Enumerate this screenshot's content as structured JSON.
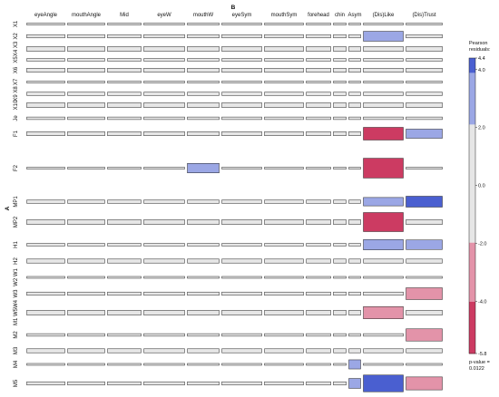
{
  "chart_data": {
    "type": "mosaic",
    "title": "",
    "x_variable": "B",
    "y_variable": "A",
    "x_categories": [
      "eyeAngle",
      "mouthAngle",
      "Mid",
      "eyeW",
      "mouthW",
      "eyeSym",
      "mouthSym",
      "forehead",
      "chin",
      "Asym",
      "(Dis)Like",
      "(Dis)Trust"
    ],
    "y_categories": [
      "X1",
      "X2",
      "X4 X3",
      "X5",
      "X6",
      "X7",
      "X9 X8",
      "X10",
      "Je",
      "F1",
      "F2",
      "MP1",
      "MP2",
      "H1",
      "H2",
      "W2 W1",
      "W3",
      "M1 W5W4",
      "M2",
      "M3",
      "M4",
      "M5"
    ],
    "residuals": {
      "X2": {
        "(Dis)Like": 2.6
      },
      "F1": {
        "(Dis)Like": -4.6,
        "(Dis)Trust": 2.4
      },
      "F2": {
        "mouthW": 2.5,
        "(Dis)Like": -5.2
      },
      "MP1": {
        "(Dis)Like": 2.2,
        "(Dis)Trust": 4.3
      },
      "MP2": {
        "(Dis)Like": -5.0
      },
      "H1": {
        "(Dis)Like": 2.7,
        "(Dis)Trust": 2.5
      },
      "W3": {
        "(Dis)Trust": -3.5
      },
      "M1 W5W4": {
        "(Dis)Like": -3.2
      },
      "M2": {
        "(Dis)Trust": -3.2
      },
      "M4": {
        "Asym": 2.4
      },
      "M5": {
        "Asym": 2.6,
        "(Dis)Like": 4.4,
        "(Dis)Trust": -3.4
      }
    },
    "legend": {
      "title": [
        "Pearson",
        "residuals:"
      ],
      "ticks": [
        4.4,
        4.0,
        2.0,
        0.0,
        -2.0,
        -4.0,
        -5.8
      ],
      "tick_labels": [
        "4.4",
        "4.0",
        "2.0",
        "0.0",
        "-2.0",
        "-4.0",
        "-5.8"
      ],
      "range": [
        -5.8,
        4.4
      ],
      "shading_breaks": [
        2,
        4
      ],
      "positive_color": "#4a5fd0",
      "negative_color": "#cc3b62",
      "neutral_color": "#e6e6e6",
      "p_value_text": [
        "p-value =",
        "0.0122"
      ]
    }
  }
}
